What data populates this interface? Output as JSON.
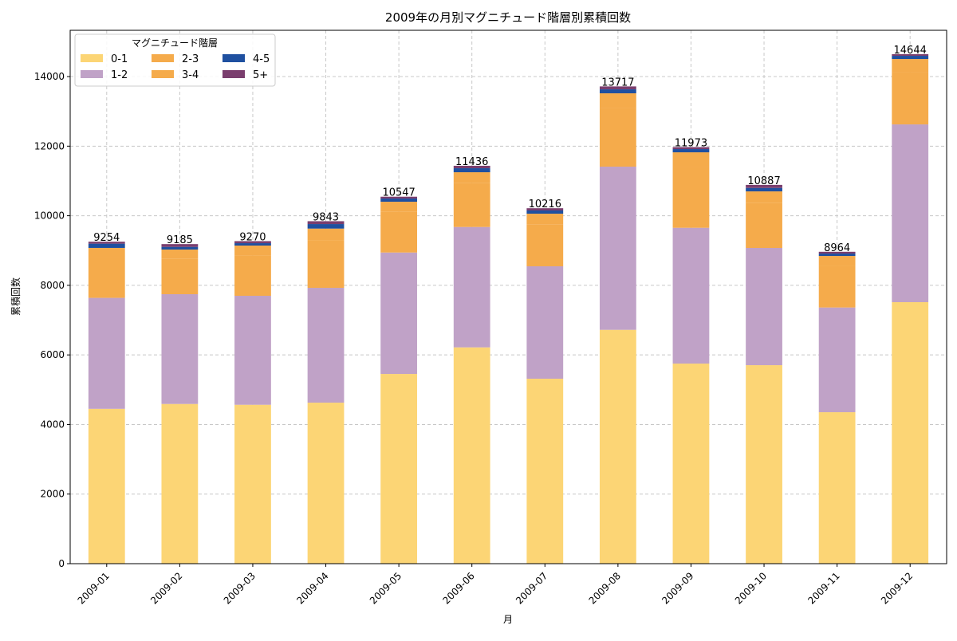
{
  "chart_data": {
    "type": "bar",
    "stacked": true,
    "title": "2009年の月別マグニチュード階層別累積回数",
    "xlabel": "月",
    "ylabel": "累積回数",
    "ylim": [
      0,
      15330
    ],
    "yticks": [
      0,
      2000,
      4000,
      6000,
      8000,
      10000,
      12000,
      14000
    ],
    "grid": true,
    "legend": {
      "title": "マグニチュード階層",
      "placement": "top-left",
      "columns": 3
    },
    "categories": [
      "2009-01",
      "2009-02",
      "2009-03",
      "2009-04",
      "2009-05",
      "2009-06",
      "2009-07",
      "2009-08",
      "2009-09",
      "2009-10",
      "2009-11",
      "2009-12"
    ],
    "series": [
      {
        "name": "0-1",
        "color": "#fcd575",
        "values": [
          4450,
          4590,
          4567,
          4628,
          5453,
          6217,
          5316,
          6721,
          5751,
          5705,
          4353,
          7516
        ]
      },
      {
        "name": "1-2",
        "color": "#c0a2c7",
        "values": [
          3190,
          3155,
          3132,
          3300,
          3490,
          3460,
          3231,
          4690,
          3903,
          3369,
          3010,
          5109
        ]
      },
      {
        "name": "2-3",
        "color": "#f5ab4b",
        "values": [
          1148,
          1026,
          1155,
          1362,
          1167,
          1258,
          1210,
          1686,
          1735,
          1301,
          1185,
          1503
        ]
      },
      {
        "name": "3-4",
        "color": "#f5ab4b",
        "values": [
          287,
          257,
          289,
          341,
          292,
          315,
          302,
          422,
          434,
          325,
          296,
          376
        ]
      },
      {
        "name": "4-5",
        "color": "#1f50a0",
        "values": [
          122,
          76,
          68,
          130,
          92,
          115,
          92,
          114,
          92,
          99,
          69,
          92
        ]
      },
      {
        "name": "5+",
        "color": "#7a3e6e",
        "values": [
          57,
          81,
          59,
          82,
          53,
          71,
          65,
          84,
          58,
          88,
          51,
          48
        ]
      }
    ],
    "totals": [
      9254,
      9185,
      9270,
      9843,
      10547,
      11436,
      10216,
      13717,
      11973,
      10887,
      8964,
      14644
    ]
  }
}
